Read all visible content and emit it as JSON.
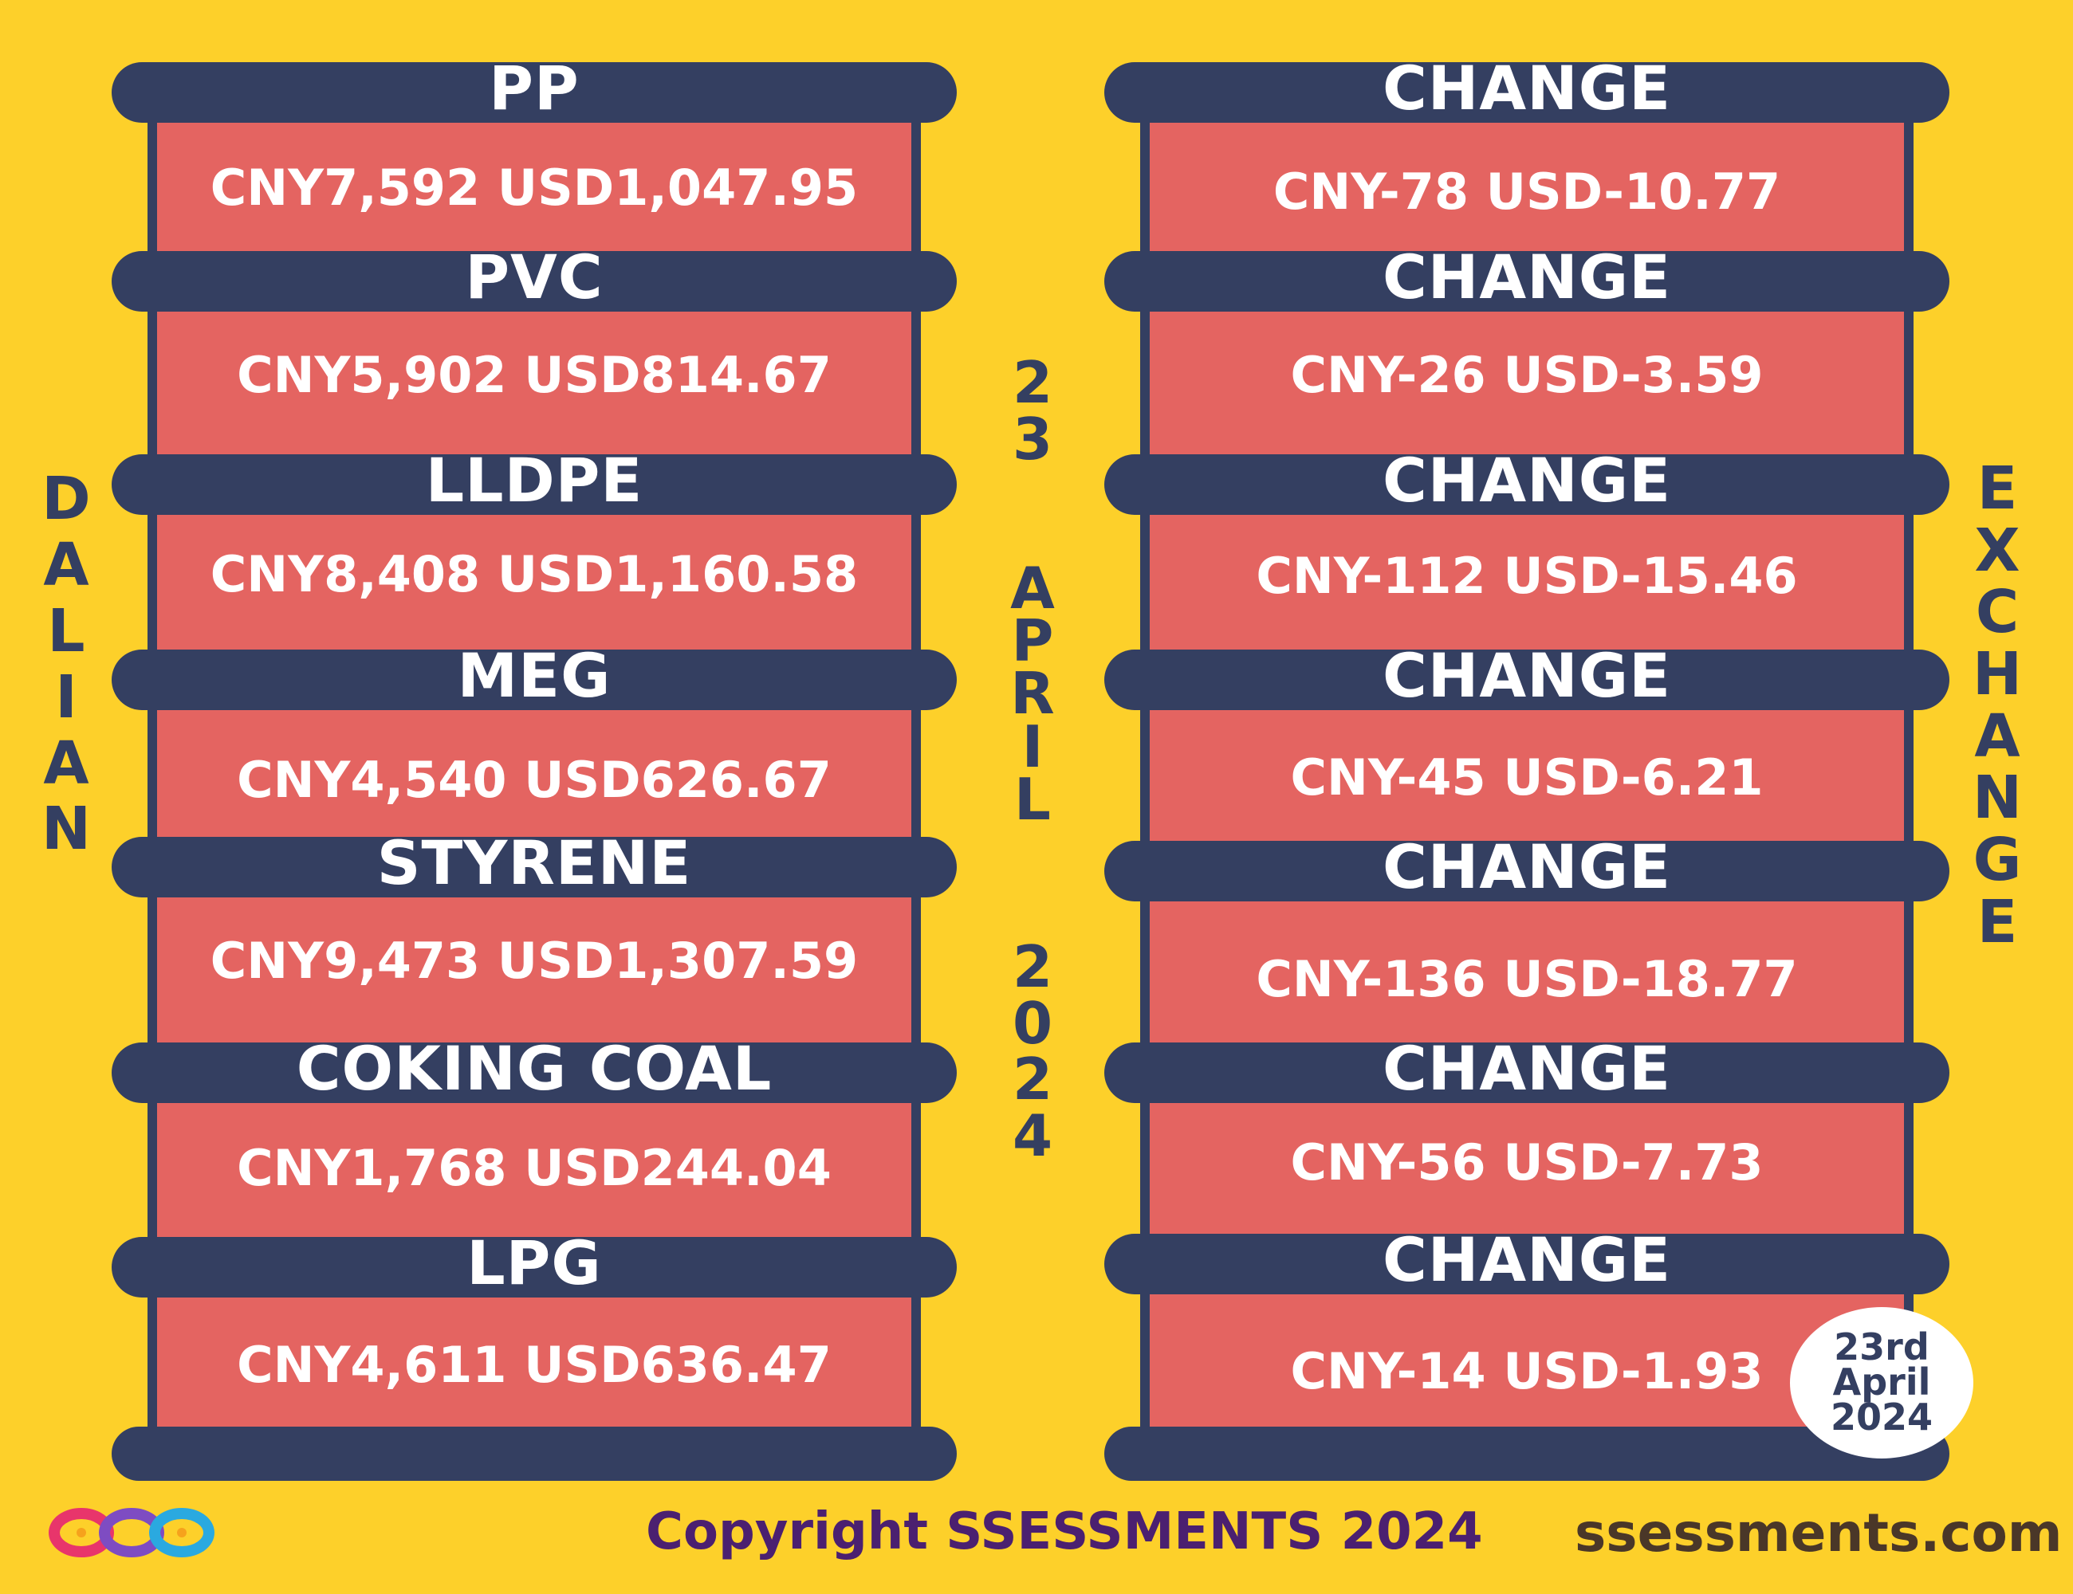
{
  "left_title": "DALIAN",
  "right_title": "EXCHANGE",
  "date_vertical": {
    "day": "23",
    "month": "APRIL",
    "year": "2024"
  },
  "commodities": [
    {
      "name": "PP",
      "value": "CNY7,592  USD1,047.95",
      "change_label": "CHANGE",
      "change": "CNY-78  USD-10.77"
    },
    {
      "name": "PVC",
      "value": "CNY5,902  USD814.67",
      "change_label": "CHANGE",
      "change": "CNY-26  USD-3.59"
    },
    {
      "name": "LLDPE",
      "value": "CNY8,408  USD1,160.58",
      "change_label": "CHANGE",
      "change": "CNY-112  USD-15.46"
    },
    {
      "name": "MEG",
      "value": "CNY4,540  USD626.67",
      "change_label": "CHANGE",
      "change": "CNY-45  USD-6.21"
    },
    {
      "name": "STYRENE",
      "value": "CNY9,473  USD1,307.59",
      "change_label": "CHANGE",
      "change": "CNY-136  USD-18.77"
    },
    {
      "name": "COKING COAL",
      "value": "CNY1,768  USD244.04",
      "change_label": "CHANGE",
      "change": "CNY-56  USD-7.73"
    },
    {
      "name": "LPG",
      "value": "CNY4,611  USD636.47",
      "change_label": "CHANGE",
      "change": "CNY-14  USD-1.93"
    }
  ],
  "date_badge": {
    "line1": "23rd",
    "line2": "April",
    "line3": "2024"
  },
  "footer": {
    "copyright": "Copyright SSESSMENTS 2024",
    "website": "ssessments.com",
    "logo_icon": "ssessments-infinity-logo-icon"
  },
  "colors": {
    "background": "#FDD02A",
    "bar": "#343F61",
    "panel": "#E46461",
    "text_light": "#FFFFFF"
  }
}
